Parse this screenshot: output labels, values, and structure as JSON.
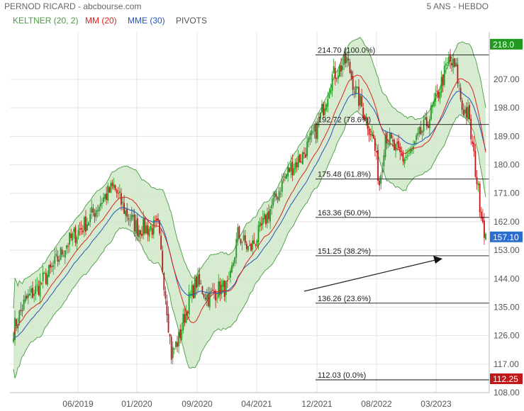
{
  "header": {
    "title": "PERNOD RICARD - abcbourse.com",
    "period": "5 ANS - HEBDO"
  },
  "legend": [
    {
      "label": "KELTNER (20, 2)",
      "color": "#4a9a44"
    },
    {
      "label": "MM (20)",
      "color": "#dd2222"
    },
    {
      "label": "MME (30)",
      "color": "#2255bb"
    },
    {
      "label": "PIVOTS",
      "color": "#555555"
    }
  ],
  "colors": {
    "up": "#1f9a1f",
    "down": "#c01818",
    "band_fill": "#cfe8c8",
    "band_stroke": "#4a9a44",
    "ma": "#dd2222",
    "ema": "#2255bb",
    "grid": "#e3e3e3"
  },
  "chart_data": {
    "type": "candlestick",
    "title": "PERNOD RICARD",
    "ylim": [
      108,
      222
    ],
    "y_ticks": [
      "108.00",
      "117.00",
      "126.00",
      "135.00",
      "144.00",
      "153.00",
      "162.00",
      "171.00",
      "180.00",
      "189.00",
      "198.00",
      "207.00"
    ],
    "x_labels": [
      "06/2019",
      "01/2020",
      "09/2020",
      "04/2021",
      "12/2021",
      "08/2022",
      "03/2023"
    ],
    "price_badges": [
      {
        "label": "218.0",
        "value": 218.0,
        "color": "#1f9a1f"
      },
      {
        "label": "157.10",
        "value": 157.1,
        "color": "#2a6dd0"
      },
      {
        "label": "112.25",
        "value": 112.25,
        "color": "#c01818"
      }
    ],
    "fibonacci": [
      {
        "value": 214.7,
        "label": "214.70",
        "pct": "(100.0%)"
      },
      {
        "value": 192.72,
        "label": "192.72",
        "pct": "(78.6%)"
      },
      {
        "value": 175.48,
        "label": "175.48",
        "pct": "(61.8%)"
      },
      {
        "value": 163.36,
        "label": "163.36",
        "pct": "(50.0%)"
      },
      {
        "value": 151.25,
        "label": "151.25",
        "pct": "(38.2%)"
      },
      {
        "value": 136.26,
        "label": "136.26",
        "pct": "(23.6%)"
      },
      {
        "value": 112.03,
        "label": "112.03",
        "pct": "(0.0%)"
      }
    ],
    "close_anchors": [
      [
        0,
        128
      ],
      [
        8,
        137
      ],
      [
        16,
        141
      ],
      [
        26,
        147
      ],
      [
        36,
        155
      ],
      [
        50,
        162
      ],
      [
        60,
        169
      ],
      [
        68,
        173
      ],
      [
        76,
        165
      ],
      [
        84,
        160
      ],
      [
        90,
        160
      ],
      [
        98,
        160
      ],
      [
        104,
        135
      ],
      [
        107,
        120
      ],
      [
        112,
        125
      ],
      [
        118,
        136
      ],
      [
        124,
        143
      ],
      [
        132,
        138
      ],
      [
        140,
        141
      ],
      [
        146,
        141
      ],
      [
        152,
        158
      ],
      [
        160,
        153
      ],
      [
        166,
        158
      ],
      [
        176,
        168
      ],
      [
        186,
        178
      ],
      [
        196,
        183
      ],
      [
        206,
        192
      ],
      [
        216,
        208
      ],
      [
        226,
        213
      ],
      [
        232,
        203
      ],
      [
        238,
        196
      ],
      [
        244,
        188
      ],
      [
        248,
        174
      ],
      [
        252,
        190
      ],
      [
        258,
        185
      ],
      [
        264,
        182
      ],
      [
        270,
        184
      ],
      [
        276,
        190
      ],
      [
        280,
        193
      ],
      [
        286,
        200
      ],
      [
        290,
        206
      ],
      [
        295,
        213
      ],
      [
        300,
        210
      ],
      [
        304,
        198
      ],
      [
        308,
        196
      ],
      [
        312,
        182
      ],
      [
        316,
        168
      ],
      [
        320,
        157
      ]
    ]
  }
}
